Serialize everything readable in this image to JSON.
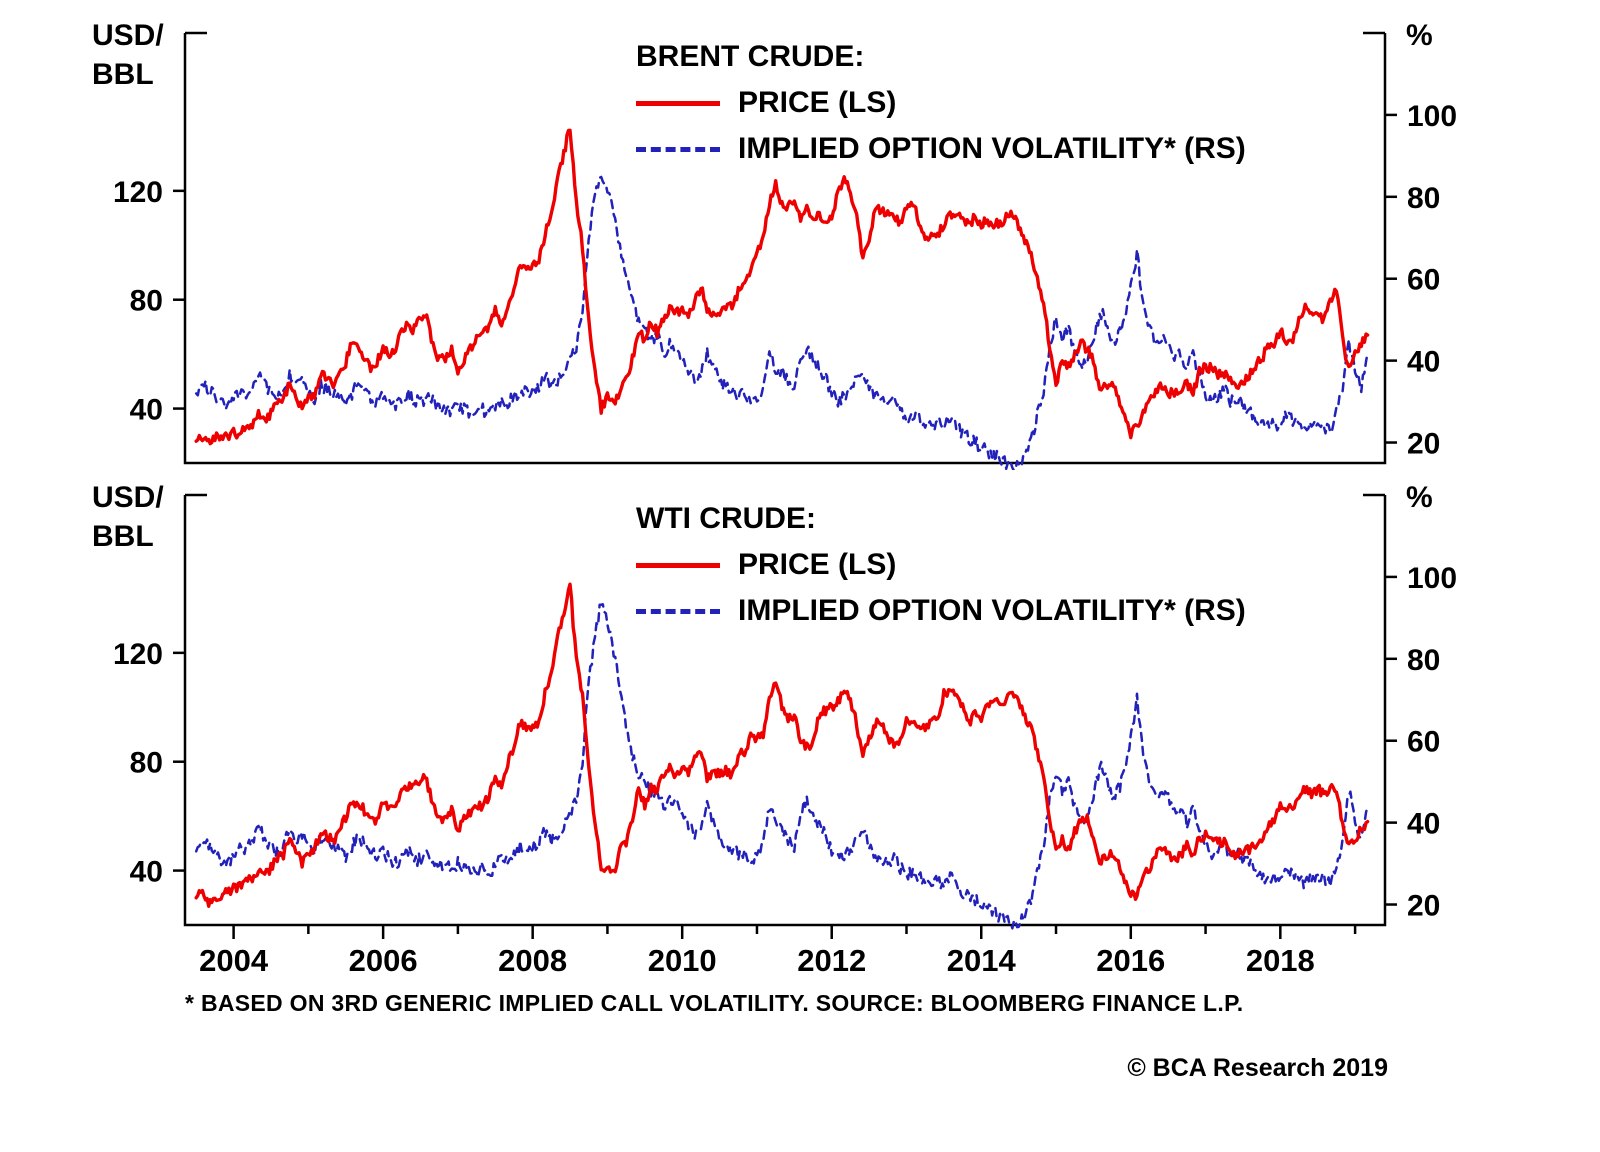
{
  "page": {
    "footnote": "* BASED ON 3RD GENERIC IMPLIED CALL VOLATILITY. SOURCE: BLOOMBERG FINANCE L.P.",
    "copyright": "© BCA Research 2019"
  },
  "colors": {
    "price": "#ee0000",
    "volatility": "#2222bb",
    "axis": "#000000"
  },
  "chart_data": [
    {
      "type": "line",
      "panel": "brent",
      "title": "BRENT CRUDE:",
      "legend": [
        {
          "label": "PRICE (LS)",
          "style": "solid"
        },
        {
          "label": "IMPLIED OPTION VOLATILITY* (RS)",
          "style": "dashed"
        }
      ],
      "left_axis": {
        "label_lines": [
          "USD/",
          "BBL"
        ],
        "ticks": [
          40,
          80,
          120
        ],
        "range": [
          20,
          178
        ]
      },
      "right_axis": {
        "label": "%",
        "ticks": [
          20,
          40,
          60,
          80,
          100
        ],
        "range": [
          15,
          120
        ]
      },
      "x": {
        "start": 2003.5,
        "step": 0.0833333,
        "range": [
          2003.35,
          2019.4
        ],
        "ticks": [
          2004,
          2006,
          2008,
          2010,
          2012,
          2014,
          2016,
          2018
        ],
        "show_labels": false
      },
      "series": [
        {
          "name": "price",
          "axis": "left",
          "style": "solid",
          "values": [
            28,
            30,
            27,
            30,
            29,
            30,
            31,
            31,
            34,
            33,
            38,
            35,
            38,
            43,
            43,
            50,
            45,
            40,
            44,
            45,
            53,
            52,
            48,
            54,
            57,
            64,
            63,
            59,
            55,
            57,
            63,
            60,
            62,
            70,
            70,
            69,
            74,
            73,
            63,
            58,
            59,
            62,
            54,
            58,
            62,
            67,
            67,
            71,
            77,
            71,
            77,
            83,
            92,
            91,
            92,
            95,
            104,
            112,
            124,
            134,
            144,
            116,
            99,
            72,
            53,
            40,
            44,
            41,
            46,
            50,
            58,
            69,
            65,
            72,
            68,
            73,
            77,
            75,
            76,
            74,
            79,
            85,
            76,
            75,
            75,
            77,
            78,
            83,
            85,
            92,
            97,
            104,
            115,
            123,
            115,
            114,
            117,
            110,
            113,
            109,
            111,
            108,
            111,
            119,
            125,
            120,
            110,
            95,
            103,
            113,
            113,
            112,
            109,
            109,
            113,
            116,
            109,
            102,
            103,
            103,
            108,
            111,
            112,
            109,
            108,
            110,
            108,
            109,
            108,
            108,
            110,
            112,
            107,
            102,
            97,
            88,
            79,
            62,
            48,
            58,
            56,
            60,
            64,
            62,
            57,
            47,
            48,
            49,
            44,
            38,
            31,
            33,
            39,
            42,
            47,
            48,
            45,
            46,
            47,
            50,
            45,
            54,
            55,
            55,
            52,
            53,
            51,
            47,
            49,
            52,
            56,
            58,
            63,
            64,
            69,
            65,
            66,
            72,
            77,
            75,
            74,
            73,
            79,
            84,
            65,
            54,
            60,
            64,
            67
          ]
        },
        {
          "name": "implied_volatility",
          "axis": "right",
          "style": "dashed",
          "values": [
            32,
            34,
            33,
            31,
            30,
            29,
            31,
            33,
            32,
            34,
            37,
            34,
            32,
            31,
            32,
            37,
            34,
            35,
            33,
            31,
            34,
            33,
            32,
            31,
            30,
            32,
            35,
            33,
            31,
            30,
            31,
            30,
            29,
            30,
            32,
            30,
            30,
            31,
            30,
            29,
            28,
            28,
            29,
            28,
            27,
            27,
            28,
            27,
            28,
            31,
            30,
            31,
            33,
            32,
            33,
            34,
            36,
            34,
            35,
            37,
            40,
            43,
            52,
            70,
            80,
            86,
            82,
            76,
            67,
            60,
            54,
            50,
            48,
            45,
            46,
            42,
            44,
            43,
            40,
            38,
            36,
            37,
            42,
            38,
            35,
            34,
            33,
            31,
            32,
            30,
            30,
            34,
            42,
            38,
            37,
            35,
            33,
            41,
            43,
            40,
            38,
            36,
            32,
            30,
            31,
            32,
            36,
            38,
            34,
            31,
            30,
            29,
            30,
            28,
            26,
            27,
            26,
            25,
            24,
            25,
            24,
            26,
            24,
            22,
            21,
            20,
            19,
            18,
            17,
            16,
            15,
            14,
            15,
            17,
            20,
            27,
            33,
            44,
            50,
            46,
            48,
            42,
            38,
            40,
            44,
            52,
            50,
            44,
            46,
            50,
            58,
            66,
            54,
            48,
            44,
            46,
            44,
            40,
            42,
            38,
            42,
            36,
            32,
            30,
            31,
            33,
            30,
            31,
            29,
            28,
            26,
            25,
            24,
            25,
            24,
            27,
            25,
            24,
            23,
            24,
            25,
            24,
            23,
            27,
            34,
            44,
            38,
            33,
            42
          ]
        }
      ]
    },
    {
      "type": "line",
      "panel": "wti",
      "title": "WTI CRUDE:",
      "legend": [
        {
          "label": "PRICE (LS)",
          "style": "solid"
        },
        {
          "label": "IMPLIED OPTION VOLATILITY* (RS)",
          "style": "dashed"
        }
      ],
      "left_axis": {
        "label_lines": [
          "USD/",
          "BBL"
        ],
        "ticks": [
          40,
          80,
          120
        ],
        "range": [
          20,
          178
        ]
      },
      "right_axis": {
        "label": "%",
        "ticks": [
          20,
          40,
          60,
          80,
          100
        ],
        "range": [
          15,
          120
        ]
      },
      "x": {
        "start": 2003.5,
        "step": 0.0833333,
        "range": [
          2003.35,
          2019.4
        ],
        "ticks": [
          2004,
          2006,
          2008,
          2010,
          2012,
          2014,
          2016,
          2018
        ],
        "show_labels": true
      },
      "series": [
        {
          "name": "price",
          "axis": "left",
          "style": "solid",
          "values": [
            30,
            32,
            28,
            30,
            31,
            32,
            34,
            34,
            37,
            37,
            40,
            38,
            41,
            45,
            46,
            53,
            48,
            43,
            47,
            48,
            54,
            53,
            50,
            56,
            59,
            65,
            65,
            62,
            58,
            59,
            65,
            62,
            62,
            70,
            71,
            71,
            74,
            73,
            64,
            59,
            59,
            62,
            54,
            59,
            61,
            64,
            63,
            68,
            74,
            72,
            80,
            86,
            95,
            92,
            93,
            95,
            105,
            113,
            126,
            134,
            145,
            117,
            104,
            77,
            57,
            41,
            42,
            39,
            48,
            50,
            59,
            70,
            64,
            71,
            69,
            76,
            78,
            74,
            78,
            76,
            81,
            84,
            74,
            75,
            76,
            77,
            75,
            82,
            84,
            89,
            89,
            89,
            103,
            110,
            101,
            96,
            97,
            86,
            86,
            86,
            97,
            99,
            100,
            102,
            106,
            103,
            94,
            82,
            88,
            94,
            95,
            89,
            87,
            88,
            95,
            95,
            93,
            92,
            95,
            96,
            105,
            106,
            106,
            100,
            94,
            98,
            95,
            101,
            101,
            102,
            102,
            106,
            103,
            96,
            93,
            84,
            76,
            59,
            47,
            51,
            48,
            54,
            59,
            60,
            51,
            43,
            45,
            46,
            42,
            37,
            32,
            30,
            38,
            41,
            46,
            49,
            45,
            45,
            45,
            50,
            46,
            52,
            53,
            53,
            50,
            51,
            48,
            45,
            47,
            48,
            50,
            52,
            57,
            58,
            64,
            62,
            63,
            67,
            70,
            68,
            70,
            68,
            70,
            70,
            57,
            49,
            52,
            55,
            58
          ]
        },
        {
          "name": "implied_volatility",
          "axis": "right",
          "style": "dashed",
          "values": [
            33,
            36,
            35,
            32,
            31,
            30,
            32,
            34,
            33,
            36,
            39,
            36,
            34,
            33,
            34,
            39,
            36,
            37,
            35,
            33,
            36,
            35,
            34,
            33,
            32,
            34,
            37,
            35,
            33,
            32,
            33,
            31,
            30,
            31,
            33,
            31,
            31,
            32,
            31,
            30,
            29,
            29,
            30,
            29,
            28,
            28,
            29,
            28,
            29,
            32,
            31,
            32,
            34,
            33,
            34,
            35,
            38,
            36,
            37,
            39,
            42,
            45,
            55,
            75,
            85,
            94,
            88,
            82,
            72,
            63,
            56,
            52,
            50,
            47,
            48,
            44,
            46,
            45,
            42,
            40,
            37,
            38,
            44,
            40,
            36,
            35,
            34,
            32,
            33,
            31,
            31,
            35,
            44,
            40,
            38,
            36,
            34,
            43,
            45,
            42,
            39,
            37,
            33,
            31,
            32,
            33,
            37,
            39,
            35,
            32,
            31,
            30,
            31,
            29,
            27,
            28,
            27,
            26,
            25,
            26,
            25,
            27,
            25,
            23,
            22,
            21,
            20,
            19,
            18,
            17,
            16,
            15,
            16,
            18,
            21,
            28,
            34,
            46,
            52,
            48,
            50,
            44,
            40,
            42,
            46,
            54,
            52,
            46,
            48,
            52,
            60,
            70,
            56,
            50,
            46,
            48,
            46,
            42,
            44,
            40,
            44,
            38,
            34,
            32,
            33,
            35,
            32,
            33,
            31,
            30,
            28,
            27,
            26,
            27,
            26,
            29,
            27,
            26,
            25,
            26,
            27,
            26,
            25,
            29,
            36,
            48,
            40,
            35,
            44
          ]
        }
      ]
    }
  ]
}
